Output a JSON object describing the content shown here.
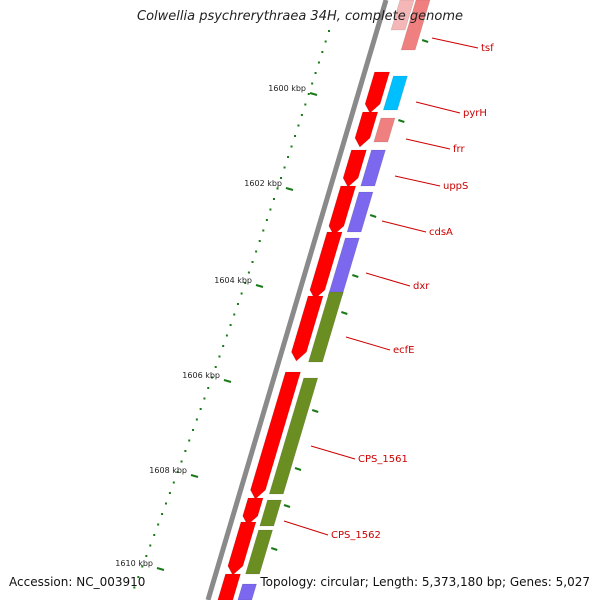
{
  "title": "Colwellia psychrerythraea 34H, complete genome",
  "footer": {
    "accession": "Accession: NC_003910",
    "summary": "Topology: circular; Length: 5,373,180 bp; Genes: 5,027"
  },
  "colors": {
    "backbone": "#8a8a8a",
    "tick": "#1a7a1a",
    "strand_red": "#ff0000",
    "strand_pink": "#f08080",
    "cyan": "#00bfff",
    "purple": "#7b68ee",
    "olive": "#6b8e23",
    "label": "#cc0000"
  },
  "scale_labels": [
    {
      "text": "1600 kbp"
    },
    {
      "text": "1602 kbp"
    },
    {
      "text": "1604 kbp"
    },
    {
      "text": "1606 kbp"
    },
    {
      "text": "1608 kbp"
    },
    {
      "text": "1610 kbp"
    }
  ],
  "gene_labels": [
    {
      "text": "tsf"
    },
    {
      "text": "pyrH"
    },
    {
      "text": "frr"
    },
    {
      "text": "uppS"
    },
    {
      "text": "cdsA"
    },
    {
      "text": "dxr"
    },
    {
      "text": "ecfE"
    },
    {
      "text": "CPS_1561"
    },
    {
      "text": "CPS_1562"
    }
  ]
}
